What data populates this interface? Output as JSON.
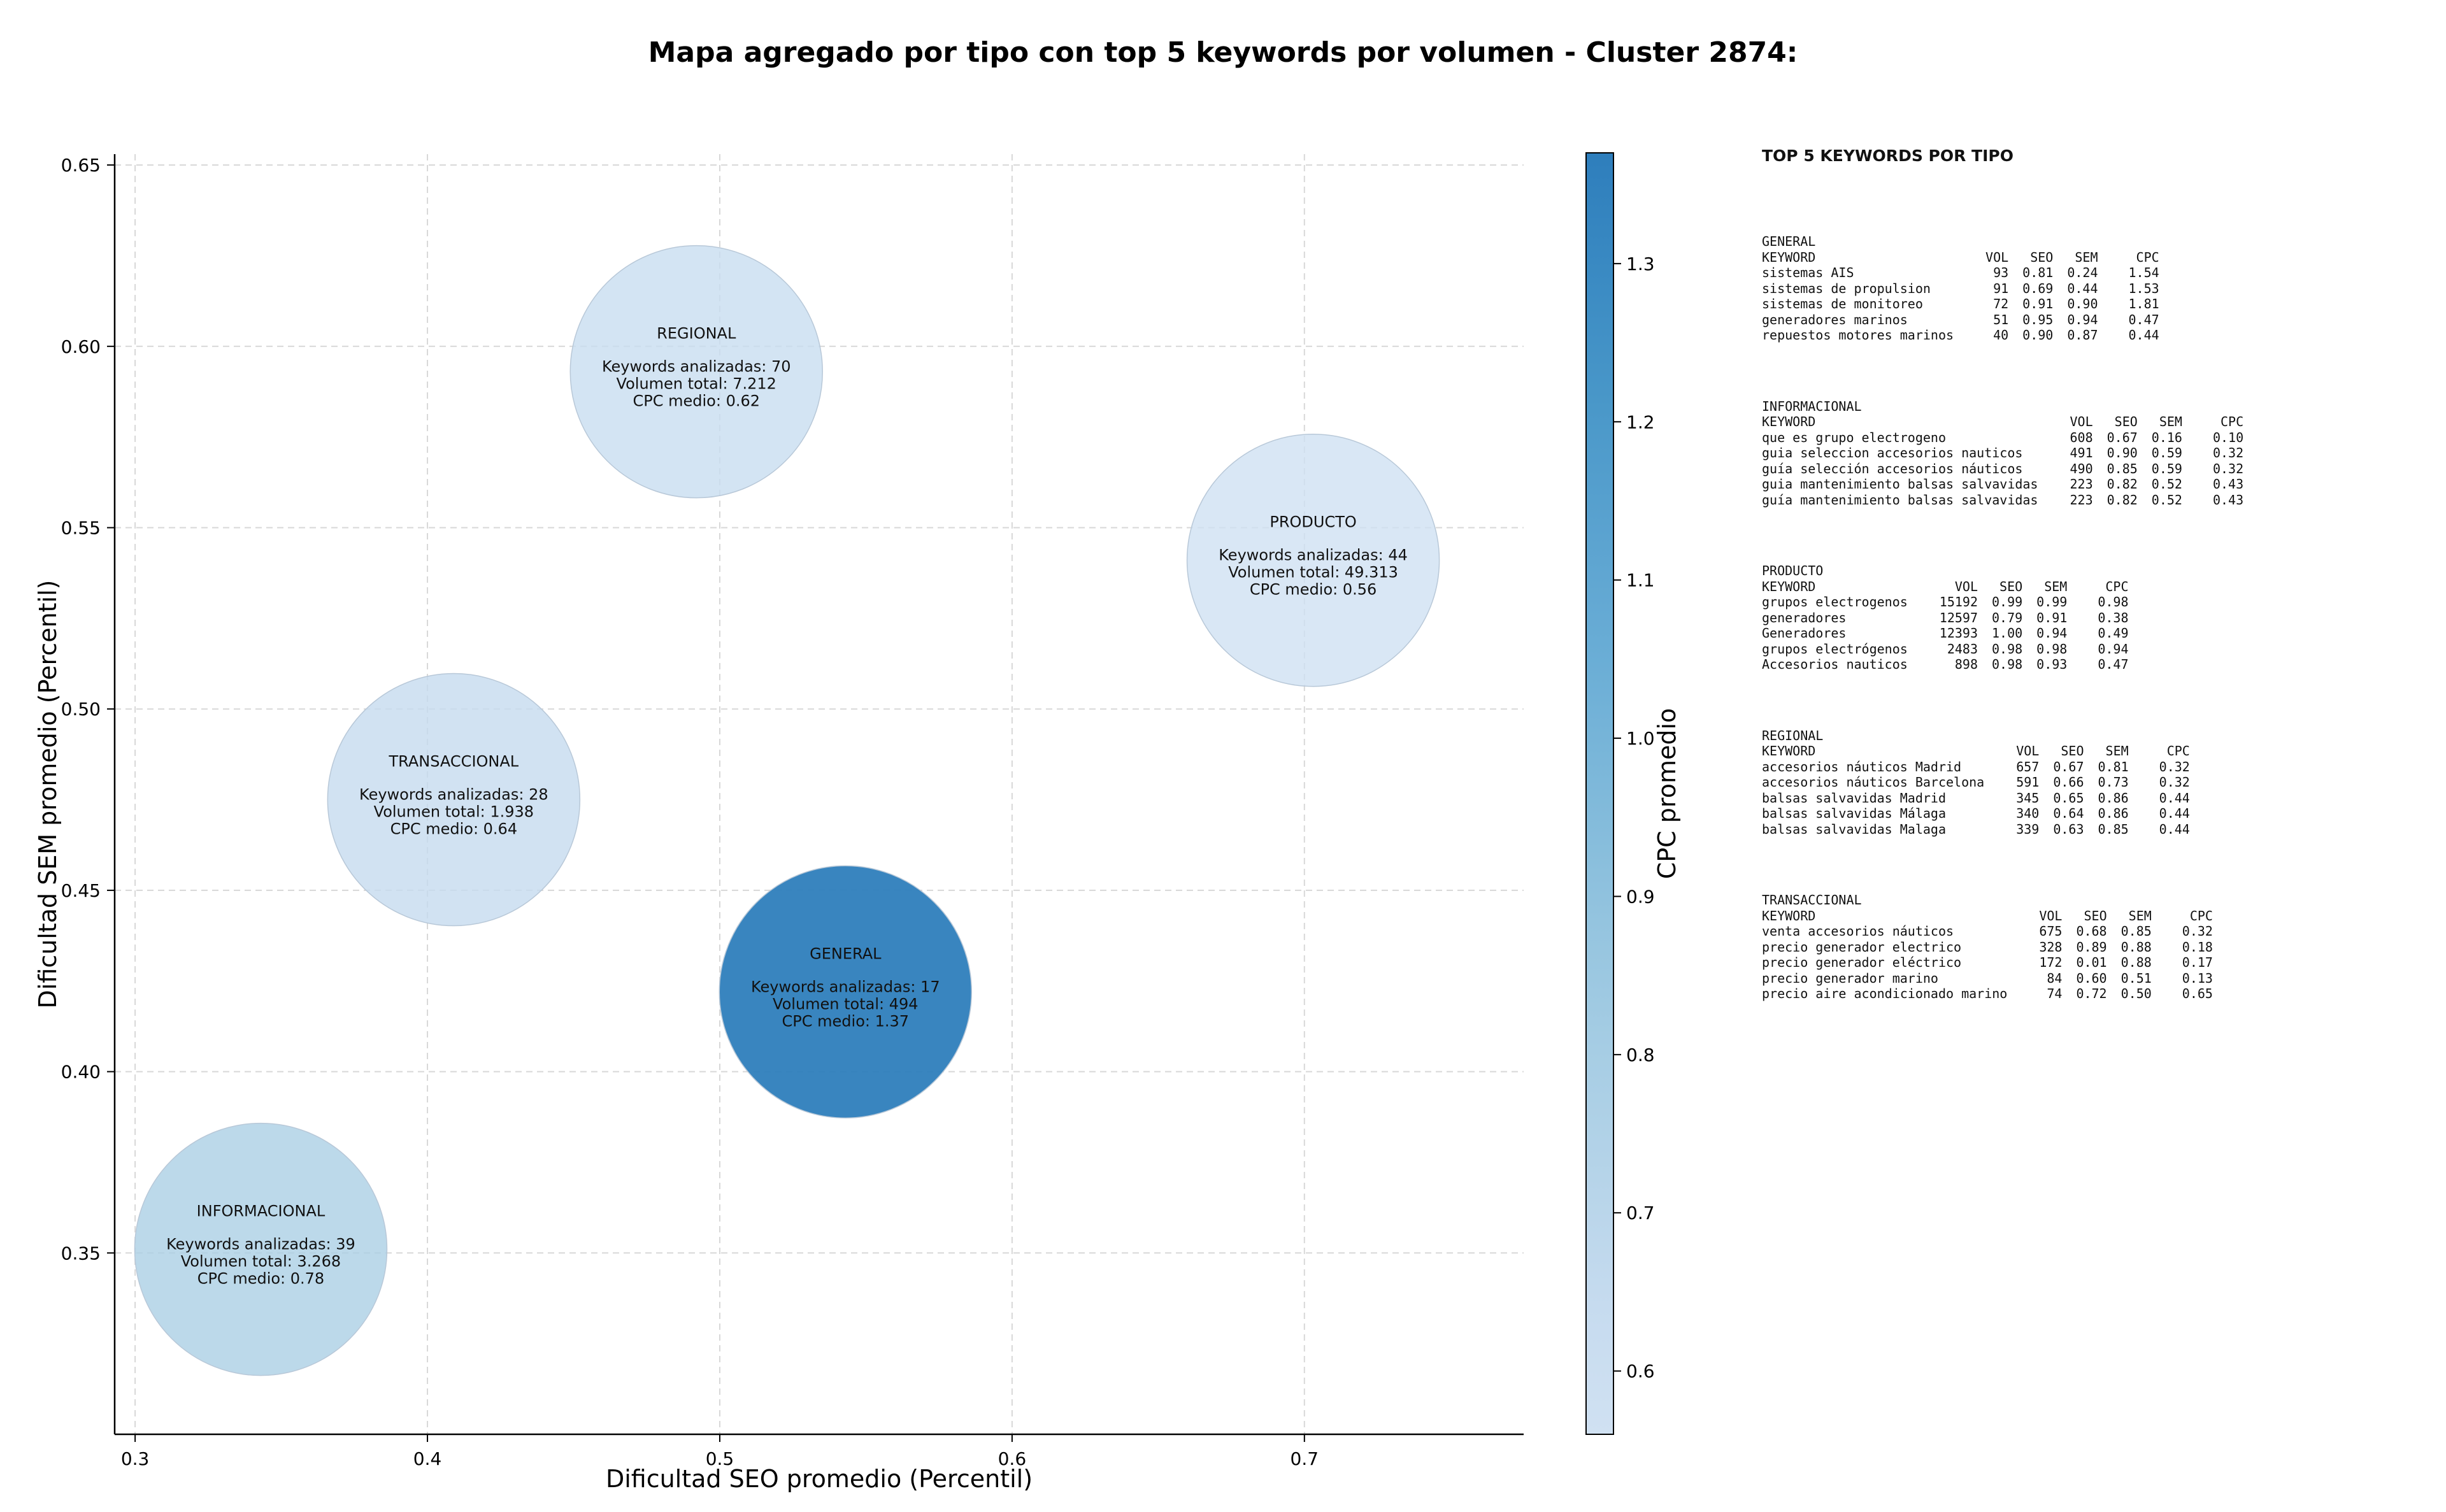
{
  "chart_data": {
    "type": "scatter",
    "variant": "bubble",
    "title": "Mapa agregado por tipo con top 5 keywords por volumen - Cluster 2874:",
    "xlabel": "Dificultad SEO promedio (Percentil)",
    "ylabel": "Dificultad SEM promedio (Percentil)",
    "xlim": [
      0.293,
      0.775
    ],
    "ylim": [
      0.3,
      0.653
    ],
    "xticks": [
      "0.3",
      "0.4",
      "0.5",
      "0.6",
      "0.7"
    ],
    "yticks": [
      "0.35",
      "0.40",
      "0.45",
      "0.50",
      "0.55",
      "0.60",
      "0.65"
    ],
    "grid": true,
    "colorbar": {
      "label": "CPC promedio",
      "range": [
        0.56,
        1.37
      ],
      "ticks": [
        "0.6",
        "0.7",
        "0.8",
        "0.9",
        "1.0",
        "1.1",
        "1.2",
        "1.3"
      ],
      "colormap": "Blues"
    },
    "bubble_label_template": {
      "keywords": "Keywords analizadas: ",
      "volume": "Volumen total: ",
      "cpc": "CPC medio: "
    },
    "points": [
      {
        "name": "REGIONAL",
        "x": 0.492,
        "y": 0.593,
        "keywords": 70,
        "volume": "7.212",
        "cpc": 0.62
      },
      {
        "name": "PRODUCTO",
        "x": 0.703,
        "y": 0.541,
        "keywords": 44,
        "volume": "49.313",
        "cpc": 0.56
      },
      {
        "name": "TRANSACCIONAL",
        "x": 0.409,
        "y": 0.475,
        "keywords": 28,
        "volume": "1.938",
        "cpc": 0.64
      },
      {
        "name": "GENERAL",
        "x": 0.543,
        "y": 0.422,
        "keywords": 17,
        "volume": "494",
        "cpc": 1.37
      },
      {
        "name": "INFORMACIONAL",
        "x": 0.343,
        "y": 0.351,
        "keywords": 39,
        "volume": "3.268",
        "cpc": 0.78
      }
    ]
  },
  "keywords_panel": {
    "title": "TOP 5 KEYWORDS POR TIPO",
    "columns": [
      "KEYWORD",
      "VOL",
      "SEO",
      "SEM",
      "CPC"
    ],
    "groups": [
      {
        "type": "GENERAL",
        "rows": [
          [
            "sistemas AIS",
            "93",
            "0.81",
            "0.24",
            "1.54"
          ],
          [
            "sistemas de propulsion",
            "91",
            "0.69",
            "0.44",
            "1.53"
          ],
          [
            "sistemas de monitoreo",
            "72",
            "0.91",
            "0.90",
            "1.81"
          ],
          [
            "generadores marinos",
            "51",
            "0.95",
            "0.94",
            "0.47"
          ],
          [
            "repuestos motores marinos",
            "40",
            "0.90",
            "0.87",
            "0.44"
          ]
        ]
      },
      {
        "type": "INFORMACIONAL",
        "rows": [
          [
            "que es grupo electrogeno",
            "608",
            "0.67",
            "0.16",
            "0.10"
          ],
          [
            "guia seleccion accesorios nauticos",
            "491",
            "0.90",
            "0.59",
            "0.32"
          ],
          [
            "guía selección accesorios náuticos",
            "490",
            "0.85",
            "0.59",
            "0.32"
          ],
          [
            "guia mantenimiento balsas salvavidas",
            "223",
            "0.82",
            "0.52",
            "0.43"
          ],
          [
            "guía mantenimiento balsas salvavidas",
            "223",
            "0.82",
            "0.52",
            "0.43"
          ]
        ]
      },
      {
        "type": "PRODUCTO",
        "rows": [
          [
            "grupos electrogenos",
            "15192",
            "0.99",
            "0.99",
            "0.98"
          ],
          [
            "generadores",
            "12597",
            "0.79",
            "0.91",
            "0.38"
          ],
          [
            "Generadores",
            "12393",
            "1.00",
            "0.94",
            "0.49"
          ],
          [
            "grupos electrógenos",
            "2483",
            "0.98",
            "0.98",
            "0.94"
          ],
          [
            "Accesorios nauticos",
            "898",
            "0.98",
            "0.93",
            "0.47"
          ]
        ]
      },
      {
        "type": "REGIONAL",
        "rows": [
          [
            "accesorios náuticos Madrid",
            "657",
            "0.67",
            "0.81",
            "0.32"
          ],
          [
            "accesorios náuticos Barcelona",
            "591",
            "0.66",
            "0.73",
            "0.32"
          ],
          [
            "balsas salvavidas Madrid",
            "345",
            "0.65",
            "0.86",
            "0.44"
          ],
          [
            "balsas salvavidas Málaga",
            "340",
            "0.64",
            "0.86",
            "0.44"
          ],
          [
            "balsas salvavidas Malaga",
            "339",
            "0.63",
            "0.85",
            "0.44"
          ]
        ]
      },
      {
        "type": "TRANSACCIONAL",
        "rows": [
          [
            "venta accesorios náuticos",
            "675",
            "0.68",
            "0.85",
            "0.32"
          ],
          [
            "precio generador electrico",
            "328",
            "0.89",
            "0.88",
            "0.18"
          ],
          [
            "precio generador eléctrico",
            "172",
            "0.01",
            "0.88",
            "0.17"
          ],
          [
            "precio generador marino",
            "84",
            "0.60",
            "0.51",
            "0.13"
          ],
          [
            "precio aire acondicionado marino",
            "74",
            "0.72",
            "0.50",
            "0.65"
          ]
        ]
      }
    ]
  }
}
